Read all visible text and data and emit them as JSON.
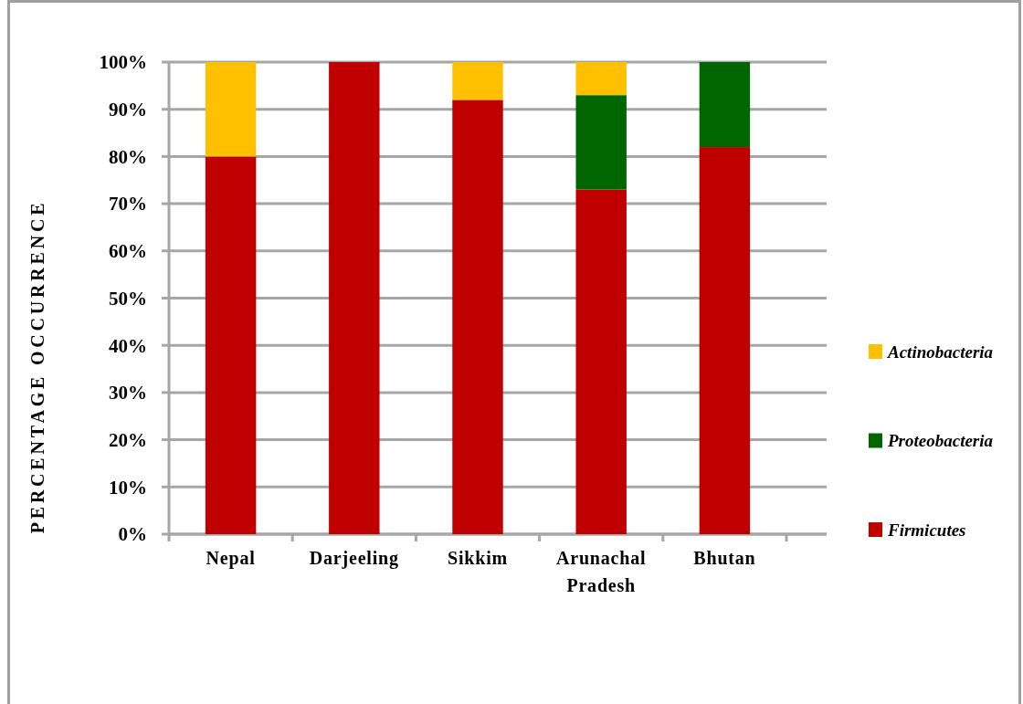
{
  "chart_data": {
    "type": "bar",
    "stacked": true,
    "ylabel": "PERCENTAGE OCCURRENCE",
    "categories": [
      "Nepal",
      "Darjeeling",
      "Sikkim",
      "Arunachal Pradesh",
      "Bhutan"
    ],
    "series": [
      {
        "name": "Firmicutes",
        "color": "#c00000",
        "values": [
          80,
          100,
          92,
          73,
          82
        ]
      },
      {
        "name": "Proteobacteria",
        "color": "#006600",
        "values": [
          0,
          0,
          0,
          20,
          18
        ]
      },
      {
        "name": "Actinobacteria",
        "color": "#ffc000",
        "values": [
          20,
          0,
          8,
          7,
          0
        ]
      }
    ],
    "ylim": [
      0,
      100
    ],
    "yticks": [
      {
        "value": 0,
        "label": "0%"
      },
      {
        "value": 10,
        "label": "10%"
      },
      {
        "value": 20,
        "label": "20%"
      },
      {
        "value": 30,
        "label": "30%"
      },
      {
        "value": 40,
        "label": "40%"
      },
      {
        "value": 50,
        "label": "50%"
      },
      {
        "value": 60,
        "label": "60%"
      },
      {
        "value": 70,
        "label": "70%"
      },
      {
        "value": 80,
        "label": "80%"
      },
      {
        "value": 90,
        "label": "90%"
      },
      {
        "value": 100,
        "label": "100%"
      }
    ],
    "grid": "y",
    "legend": "right"
  }
}
